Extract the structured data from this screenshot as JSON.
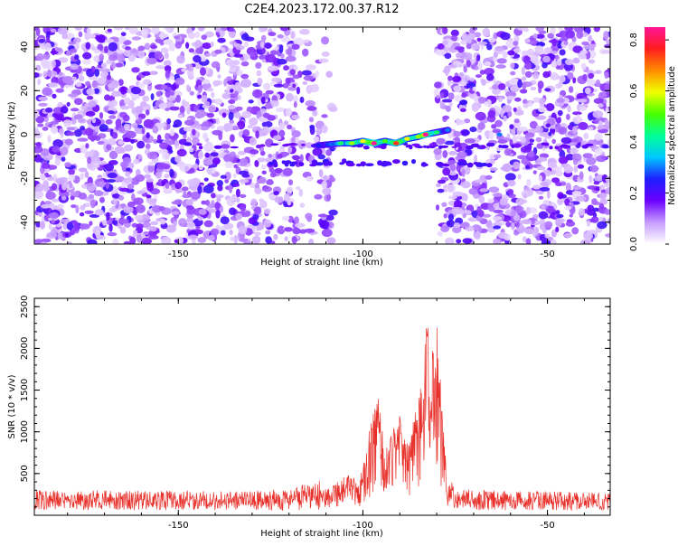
{
  "title": "C2E4.2023.172.00.37.R12",
  "chart_data": [
    {
      "type": "heatmap",
      "xlabel": "Height of straight line (km)",
      "ylabel": "Frequency (Hz)",
      "xlim": [
        -189,
        -33
      ],
      "ylim": [
        -50,
        49
      ],
      "x_ticks": [
        -150,
        -100,
        -50
      ],
      "y_ticks": [
        -40,
        -20,
        0,
        20,
        40
      ],
      "x_tick_labels": [
        "-150",
        "-100",
        "-50"
      ],
      "y_tick_labels": [
        "-40",
        "-20",
        "0",
        "20",
        "40"
      ],
      "grid": false,
      "empty_band_km": [
        -108,
        -80
      ],
      "main_streak": [
        {
          "x": -112,
          "y": -5,
          "v": 0.25
        },
        {
          "x": -106,
          "y": -4,
          "v": 0.45
        },
        {
          "x": -103,
          "y": -4,
          "v": 0.55
        },
        {
          "x": -100,
          "y": -3,
          "v": 0.6
        },
        {
          "x": -97,
          "y": -4,
          "v": 0.85
        },
        {
          "x": -94,
          "y": -3,
          "v": 0.5
        },
        {
          "x": -91,
          "y": -4,
          "v": 0.75
        },
        {
          "x": -88,
          "y": -2,
          "v": 0.6
        },
        {
          "x": -85,
          "y": -1,
          "v": 0.55
        },
        {
          "x": -83,
          "y": 0,
          "v": 0.85
        },
        {
          "x": -80,
          "y": 1,
          "v": 0.45
        },
        {
          "x": -77,
          "y": 2,
          "v": 0.3
        },
        {
          "x": -63,
          "y": 0,
          "v": 0.3
        }
      ],
      "lower_streak_y": -13,
      "colorbar": {
        "label": "Normalized spectral amplitude",
        "range": [
          0,
          0.85
        ],
        "ticks": [
          0,
          0.2,
          0.4,
          0.6,
          0.8
        ],
        "tick_labels": [
          "0.0",
          "0.2",
          "0.4",
          "0.6",
          "0.8"
        ],
        "colormap": [
          "#ffffff",
          "#c79cff",
          "#6a00ff",
          "#1e1eff",
          "#00c8ff",
          "#00ff96",
          "#48ff00",
          "#f0ff00",
          "#ff8c00",
          "#ff1e1e",
          "#ff1496"
        ]
      }
    },
    {
      "type": "line",
      "xlabel": "Height of straight line (km)",
      "ylabel": "SNR (10 * v/v)",
      "xlim": [
        -189,
        -33
      ],
      "ylim": [
        0,
        2600
      ],
      "x_ticks": [
        -150,
        -100,
        -50
      ],
      "y_ticks": [
        500,
        1000,
        1500,
        2000,
        2500
      ],
      "x_tick_labels": [
        "-150",
        "-100",
        "-50"
      ],
      "y_tick_labels": [
        "500",
        "1000",
        "1500",
        "2000",
        "2500"
      ],
      "grid": false,
      "color": "#e8302a",
      "envelope": [
        {
          "x": -189,
          "y": 180
        },
        {
          "x": -130,
          "y": 170
        },
        {
          "x": -120,
          "y": 200
        },
        {
          "x": -112,
          "y": 290
        },
        {
          "x": -108,
          "y": 380
        },
        {
          "x": -104,
          "y": 450
        },
        {
          "x": -101,
          "y": 380
        },
        {
          "x": -98,
          "y": 900
        },
        {
          "x": -96,
          "y": 1250
        },
        {
          "x": -94,
          "y": 600
        },
        {
          "x": -92,
          "y": 900
        },
        {
          "x": -90,
          "y": 1050
        },
        {
          "x": -88,
          "y": 750
        },
        {
          "x": -86,
          "y": 1000
        },
        {
          "x": -84,
          "y": 1400
        },
        {
          "x": -83,
          "y": 1900
        },
        {
          "x": -82,
          "y": 2200
        },
        {
          "x": -81,
          "y": 1600
        },
        {
          "x": -80,
          "y": 1900
        },
        {
          "x": -79,
          "y": 1300
        },
        {
          "x": -77,
          "y": 400
        },
        {
          "x": -75,
          "y": 200
        },
        {
          "x": -60,
          "y": 170
        },
        {
          "x": -33,
          "y": 160
        }
      ]
    }
  ]
}
